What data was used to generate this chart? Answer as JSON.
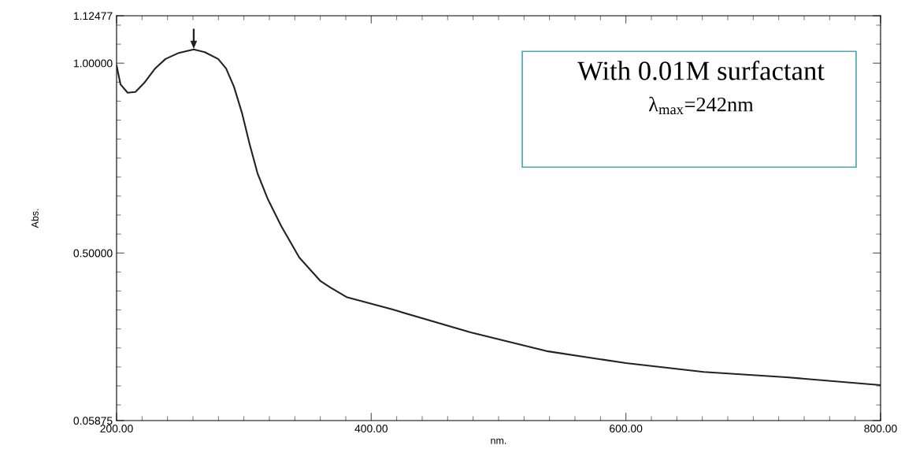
{
  "chart_data": {
    "type": "line",
    "xlabel": "nm.",
    "ylabel": "Abs.",
    "annotations": [
      "With 0.01M surfactant",
      "λ$_{max}$=242nm"
    ],
    "series": [
      {
        "color": "#222222",
        "x": [
          200,
          203.1,
          208.7,
          214.8,
          221.7,
          230.3,
          238.4,
          248.9,
          260.6,
          269.3,
          279.8,
          286,
          292.2,
          298.4,
          304.5,
          310.7,
          318.8,
          329.3,
          343.5,
          360.2,
          368,
          380.6,
          417,
          478,
          539,
          600,
          661,
          726,
          800
        ],
        "values": [
          0.994,
          0.944,
          0.922,
          0.924,
          0.948,
          0.986,
          1.011,
          1.027,
          1.036,
          1.029,
          1.011,
          0.986,
          0.938,
          0.87,
          0.787,
          0.71,
          0.642,
          0.571,
          0.488,
          0.426,
          0.409,
          0.384,
          0.351,
          0.291,
          0.241,
          0.21,
          0.187,
          0.173,
          0.152
        ]
      }
    ],
    "xlim": [
      200,
      800
    ],
    "xticks": [
      {
        "value": 200,
        "label": "200.00"
      },
      {
        "value": 400,
        "label": "400.00"
      },
      {
        "value": 600,
        "label": "600.00"
      },
      {
        "value": 800,
        "label": "800.00"
      }
    ],
    "ylim": [
      0.05875,
      1.12477
    ],
    "yticks": [
      {
        "value": 0.05875,
        "label": "0.05875"
      },
      {
        "value": 0.5,
        "label": "0.50000"
      },
      {
        "value": 1.0,
        "label": "1.00000"
      },
      {
        "value": 1.12477,
        "label": "1.12477"
      }
    ],
    "grid": false,
    "legend": false
  }
}
